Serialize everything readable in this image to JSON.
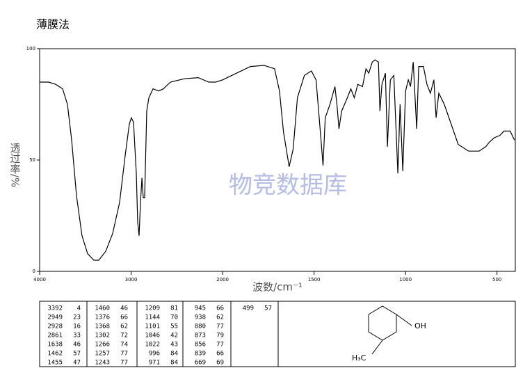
{
  "title": "薄膜法",
  "chart_data": {
    "type": "line",
    "xlabel": "波数/cm⁻¹",
    "ylabel": "透过率/%",
    "watermark": "物竞数据库",
    "xlim": [
      4000,
      400
    ],
    "xticks": [
      4000,
      3000,
      2000,
      1500,
      1000,
      500
    ],
    "xscale": {
      "break": 2000,
      "factor": 2
    },
    "ylim": [
      0,
      100
    ],
    "yticks": [
      0,
      50,
      100
    ],
    "grid": false,
    "series": [
      {
        "name": null,
        "color": "#000000",
        "x": [
          4000,
          3901,
          3825,
          3749,
          3696,
          3650,
          3597,
          3537,
          3476,
          3408,
          3354,
          3278,
          3202,
          3126,
          3065,
          3020,
          2997,
          2974,
          2943,
          2928,
          2913,
          2898,
          2882,
          2867,
          2852,
          2829,
          2806,
          2760,
          2700,
          2646,
          2570,
          2418,
          2266,
          2152,
          2076,
          2000,
          1924,
          1848,
          1773,
          1716,
          1689,
          1667,
          1636,
          1614,
          1591,
          1553,
          1515,
          1489,
          1462,
          1451,
          1439,
          1413,
          1386,
          1375,
          1364,
          1349,
          1318,
          1299,
          1280,
          1261,
          1235,
          1216,
          1201,
          1182,
          1167,
          1148,
          1140,
          1129,
          1110,
          1099,
          1083,
          1064,
          1042,
          1030,
          1015,
          1000,
          985,
          973,
          958,
          939,
          928,
          902,
          883,
          864,
          845,
          833,
          818,
          788,
          712,
          655,
          598,
          561,
          542,
          515,
          485,
          462,
          428,
          405
        ],
        "values": [
          85,
          85,
          84,
          82,
          75,
          59,
          34,
          16,
          8,
          5,
          5,
          9,
          17,
          31,
          52,
          66,
          69,
          67,
          44,
          22,
          16,
          31,
          42,
          33,
          33,
          72,
          78,
          82,
          81,
          82,
          85,
          86.5,
          87,
          85,
          85,
          86,
          89,
          92,
          92.5,
          91,
          81,
          62.5,
          47,
          55,
          78,
          88,
          90,
          86,
          59,
          47.5,
          69,
          75,
          83,
          75,
          64,
          72,
          78,
          82,
          78,
          84,
          83,
          91,
          89,
          94,
          95,
          94,
          72,
          84,
          89,
          56,
          86,
          88,
          44,
          75,
          45,
          81,
          86,
          83,
          94,
          64,
          92,
          92,
          84,
          80,
          86,
          69,
          80,
          75,
          57,
          54,
          54,
          56,
          58,
          60,
          61,
          63,
          63,
          59
        ]
      }
    ]
  },
  "peak_table": [
    [
      3392,
      4
    ],
    [
      2949,
      23
    ],
    [
      2928,
      16
    ],
    [
      2861,
      33
    ],
    [
      1638,
      46
    ],
    [
      1462,
      57
    ],
    [
      1455,
      47
    ],
    [
      1460,
      46
    ],
    [
      1376,
      66
    ],
    [
      1368,
      62
    ],
    [
      1302,
      72
    ],
    [
      1266,
      74
    ],
    [
      1257,
      77
    ],
    [
      1243,
      77
    ],
    [
      1209,
      81
    ],
    [
      1144,
      70
    ],
    [
      1101,
      55
    ],
    [
      1046,
      42
    ],
    [
      1022,
      43
    ],
    [
      996,
      84
    ],
    [
      971,
      84
    ],
    [
      945,
      66
    ],
    [
      938,
      62
    ],
    [
      880,
      77
    ],
    [
      873,
      79
    ],
    [
      856,
      77
    ],
    [
      839,
      66
    ],
    [
      669,
      69
    ],
    [
      499,
      57
    ]
  ],
  "structure": {
    "labels": [
      "OH",
      "H₃C"
    ]
  }
}
